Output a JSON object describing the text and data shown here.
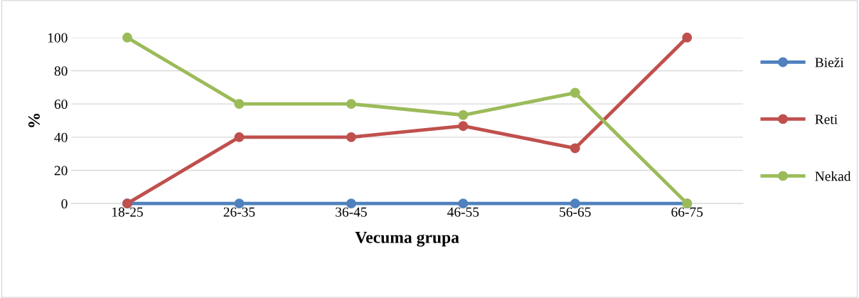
{
  "chart_data": {
    "type": "line",
    "xlabel": "Vecuma grupa",
    "ylabel": "%",
    "categories": [
      "18-25",
      "26-35",
      "36-45",
      "46-55",
      "56-65",
      "66-75"
    ],
    "series": [
      {
        "name": "Bieži",
        "color": "#4f81bd",
        "values": [
          0,
          0,
          0,
          0,
          0,
          0
        ]
      },
      {
        "name": "Reti",
        "color": "#c0504d",
        "values": [
          0,
          40,
          40,
          46.7,
          33.3,
          100
        ]
      },
      {
        "name": "Nekad",
        "color": "#9bbb59",
        "values": [
          100,
          60,
          60,
          53.3,
          66.7,
          0
        ]
      }
    ],
    "ylim": [
      0,
      100
    ],
    "yticks": [
      0,
      20,
      40,
      60,
      80,
      100
    ],
    "grid": "y",
    "legend": "right",
    "marker": "circle",
    "line_style": "solid"
  }
}
